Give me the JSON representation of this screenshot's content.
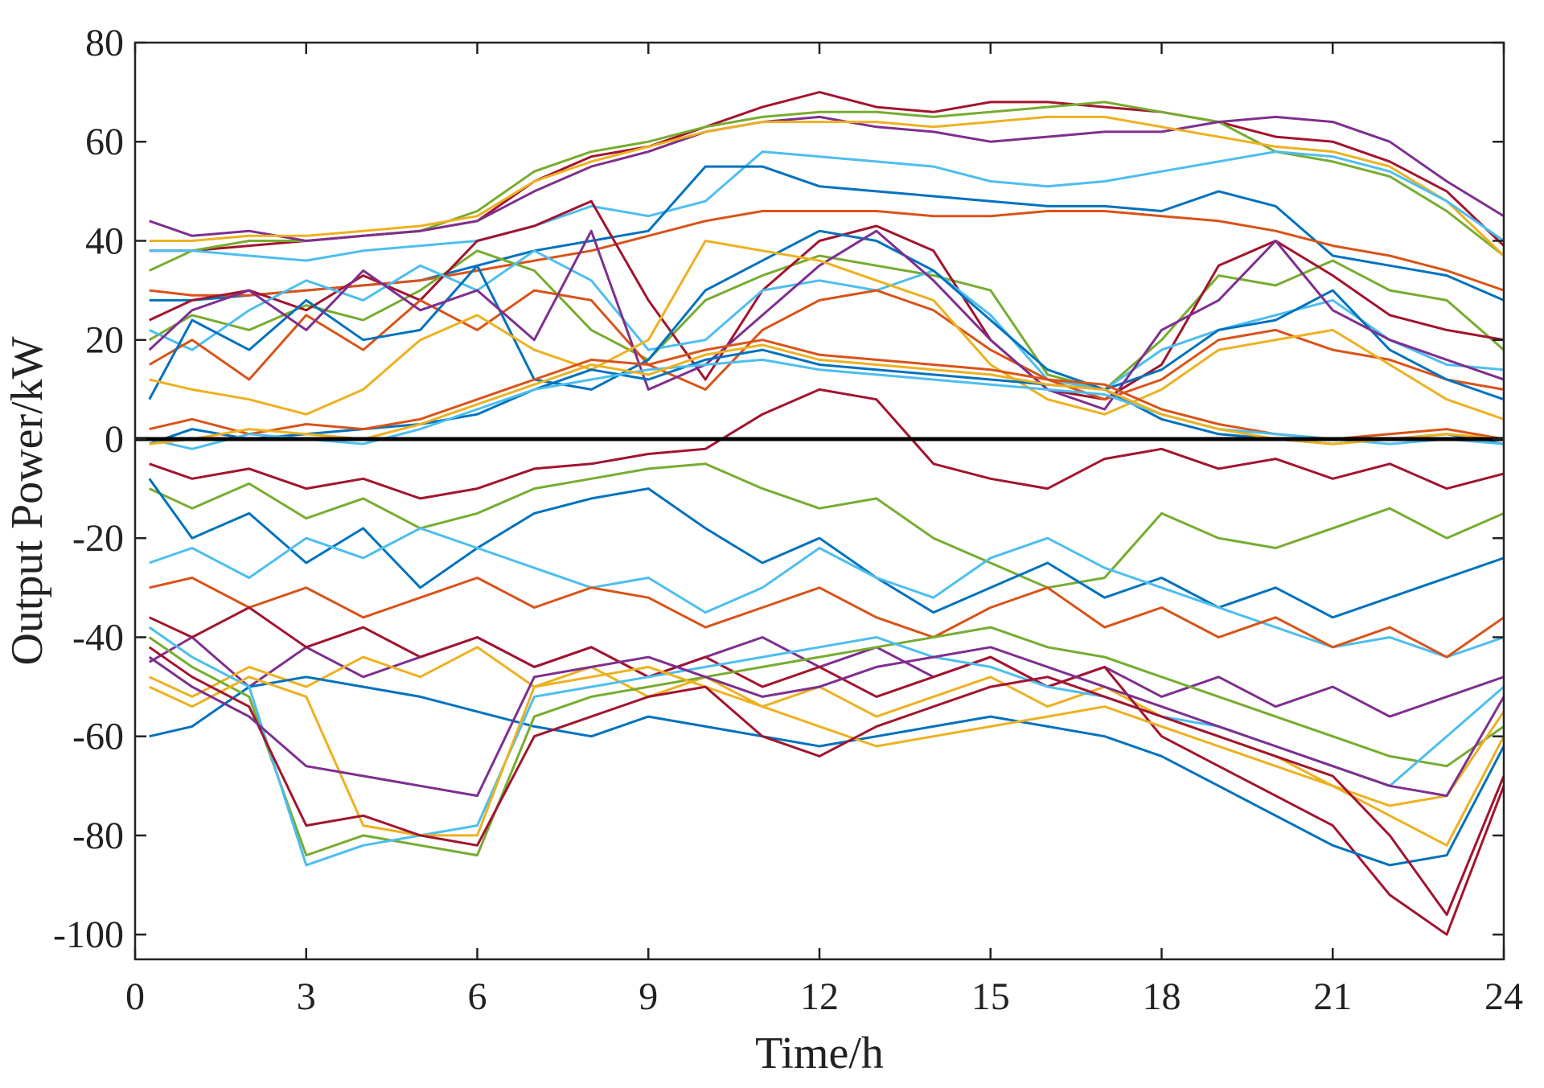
{
  "chart_data": {
    "type": "line",
    "xlabel": "Time/h",
    "ylabel": "Output Power/kW",
    "xlim": [
      0,
      24
    ],
    "ylim": [
      -105,
      80
    ],
    "x_ticks": [
      0,
      3,
      6,
      9,
      12,
      15,
      18,
      21,
      24
    ],
    "y_ticks": [
      -100,
      -80,
      -60,
      -40,
      -20,
      0,
      20,
      40,
      60,
      80
    ],
    "x_tick_labels": [
      "0",
      "3",
      "6",
      "9",
      "12",
      "15",
      "18",
      "21",
      "24"
    ],
    "y_tick_labels": [
      "-100",
      "-80",
      "-60",
      "-40",
      "-20",
      "0",
      "20",
      "40",
      "60",
      "80"
    ],
    "grid": false,
    "box": true,
    "zero_line": {
      "y": 0,
      "color": "#000000"
    },
    "palette": [
      "#0072BD",
      "#D95319",
      "#EDB120",
      "#7E2F8E",
      "#77AC30",
      "#4DBEEE",
      "#A2142F"
    ],
    "x": [
      0.25,
      1,
      2,
      3,
      4,
      5,
      6,
      7,
      8,
      9,
      10,
      11,
      12,
      13,
      14,
      15,
      16,
      17,
      18,
      19,
      20,
      21,
      22,
      23,
      24
    ],
    "series": [
      {
        "color": "#A2142F",
        "values": [
          38,
          38,
          39,
          40,
          41,
          42,
          44,
          52,
          57,
          59,
          63,
          67,
          70,
          67,
          66,
          68,
          68,
          67,
          66,
          64,
          61,
          60,
          56,
          50,
          39
        ]
      },
      {
        "color": "#77AC30",
        "values": [
          34,
          38,
          40,
          40,
          41,
          42,
          46,
          54,
          58,
          60,
          63,
          65,
          66,
          66,
          65,
          66,
          67,
          68,
          66,
          64,
          58,
          56,
          53,
          46,
          37
        ]
      },
      {
        "color": "#7E2F8E",
        "values": [
          44,
          41,
          42,
          40,
          41,
          42,
          44,
          50,
          55,
          58,
          62,
          64,
          65,
          63,
          62,
          60,
          61,
          62,
          62,
          64,
          65,
          64,
          60,
          52,
          45
        ]
      },
      {
        "color": "#EDB120",
        "values": [
          40,
          40,
          41,
          41,
          42,
          43,
          45,
          52,
          56,
          59,
          62,
          64,
          64,
          64,
          63,
          64,
          65,
          65,
          63,
          61,
          59,
          58,
          55,
          48,
          37
        ]
      },
      {
        "color": "#4DBEEE",
        "values": [
          38,
          38,
          37,
          36,
          38,
          39,
          40,
          43,
          47,
          45,
          48,
          58,
          57,
          56,
          55,
          52,
          51,
          52,
          54,
          56,
          58,
          57,
          54,
          48,
          40
        ]
      },
      {
        "color": "#0072BD",
        "values": [
          28,
          28,
          29,
          30,
          31,
          32,
          35,
          38,
          40,
          42,
          55,
          55,
          51,
          50,
          49,
          48,
          47,
          47,
          46,
          50,
          47,
          37,
          35,
          33,
          28
        ]
      },
      {
        "color": "#D95319",
        "values": [
          30,
          29,
          29,
          30,
          31,
          32,
          34,
          36,
          38,
          41,
          44,
          46,
          46,
          46,
          45,
          45,
          46,
          46,
          45,
          44,
          42,
          39,
          37,
          34,
          30
        ]
      },
      {
        "color": "#77AC30",
        "values": [
          20,
          25,
          22,
          27,
          24,
          30,
          38,
          34,
          22,
          16,
          28,
          33,
          37,
          35,
          33,
          30,
          13,
          10,
          20,
          33,
          31,
          36,
          30,
          28,
          18
        ]
      },
      {
        "color": "#A2142F",
        "values": [
          24,
          28,
          30,
          26,
          33,
          28,
          40,
          43,
          48,
          28,
          12,
          30,
          40,
          43,
          38,
          20,
          10,
          8,
          15,
          35,
          40,
          33,
          25,
          22,
          20
        ]
      },
      {
        "color": "#4DBEEE",
        "values": [
          22,
          18,
          26,
          32,
          28,
          35,
          30,
          38,
          32,
          18,
          20,
          30,
          32,
          30,
          34,
          25,
          12,
          10,
          18,
          22,
          25,
          28,
          20,
          15,
          14
        ]
      },
      {
        "color": "#D95319",
        "values": [
          15,
          20,
          12,
          25,
          18,
          28,
          22,
          30,
          28,
          15,
          10,
          22,
          28,
          30,
          26,
          18,
          12,
          8,
          12,
          20,
          22,
          18,
          16,
          12,
          10
        ]
      },
      {
        "color": "#0072BD",
        "values": [
          8,
          24,
          18,
          28,
          20,
          22,
          35,
          12,
          10,
          16,
          30,
          36,
          42,
          40,
          34,
          24,
          14,
          10,
          14,
          22,
          24,
          30,
          18,
          12,
          8
        ]
      },
      {
        "color": "#7E2F8E",
        "values": [
          18,
          26,
          30,
          22,
          34,
          26,
          30,
          20,
          42,
          10,
          15,
          25,
          35,
          42,
          32,
          20,
          10,
          6,
          22,
          28,
          40,
          26,
          20,
          16,
          12
        ]
      },
      {
        "color": "#EDB120",
        "values": [
          12,
          10,
          8,
          5,
          10,
          20,
          25,
          18,
          14,
          20,
          40,
          38,
          36,
          32,
          28,
          15,
          8,
          5,
          10,
          18,
          20,
          22,
          15,
          8,
          4
        ]
      },
      {
        "color": "#0072BD",
        "values": [
          -1,
          2,
          0,
          1,
          2,
          3,
          5,
          10,
          14,
          12,
          16,
          18,
          15,
          14,
          13,
          12,
          11,
          10,
          4,
          1,
          0,
          -1,
          0,
          1,
          -1
        ]
      },
      {
        "color": "#D95319",
        "values": [
          2,
          4,
          1,
          3,
          2,
          4,
          8,
          12,
          16,
          15,
          18,
          20,
          17,
          16,
          15,
          14,
          12,
          11,
          6,
          3,
          1,
          0,
          1,
          2,
          0
        ]
      },
      {
        "color": "#4DBEEE",
        "values": [
          0,
          -2,
          1,
          0,
          -1,
          2,
          6,
          10,
          12,
          14,
          15,
          16,
          14,
          13,
          12,
          11,
          10,
          9,
          5,
          2,
          1,
          0,
          -1,
          0,
          -1
        ]
      },
      {
        "color": "#EDB120",
        "values": [
          -1,
          0,
          2,
          1,
          0,
          3,
          7,
          11,
          15,
          13,
          17,
          19,
          16,
          15,
          14,
          13,
          11,
          10,
          5,
          2,
          0,
          -1,
          0,
          1,
          0
        ]
      },
      {
        "color": "#A2142F",
        "values": [
          -5,
          -8,
          -6,
          -10,
          -8,
          -12,
          -10,
          -6,
          -5,
          -3,
          -2,
          5,
          10,
          8,
          -5,
          -8,
          -10,
          -4,
          -2,
          -6,
          -4,
          -8,
          -5,
          -10,
          -7
        ]
      },
      {
        "color": "#77AC30",
        "values": [
          -10,
          -14,
          -9,
          -16,
          -12,
          -18,
          -15,
          -10,
          -8,
          -6,
          -5,
          -10,
          -14,
          -12,
          -20,
          -25,
          -30,
          -28,
          -15,
          -20,
          -22,
          -18,
          -14,
          -20,
          -15
        ]
      },
      {
        "color": "#0072BD",
        "values": [
          -8,
          -20,
          -15,
          -25,
          -18,
          -30,
          -22,
          -15,
          -12,
          -10,
          -18,
          -25,
          -20,
          -28,
          -35,
          -30,
          -25,
          -32,
          -28,
          -34,
          -30,
          -36,
          -32,
          -28,
          -24
        ]
      },
      {
        "color": "#4DBEEE",
        "values": [
          -25,
          -22,
          -28,
          -20,
          -24,
          -18,
          -22,
          -26,
          -30,
          -28,
          -35,
          -30,
          -22,
          -28,
          -32,
          -24,
          -20,
          -26,
          -30,
          -34,
          -38,
          -42,
          -40,
          -44,
          -40
        ]
      },
      {
        "color": "#D95319",
        "values": [
          -30,
          -28,
          -34,
          -30,
          -36,
          -32,
          -28,
          -34,
          -30,
          -32,
          -38,
          -34,
          -30,
          -36,
          -40,
          -34,
          -30,
          -38,
          -34,
          -40,
          -36,
          -42,
          -38,
          -44,
          -36
        ]
      },
      {
        "color": "#7E2F8E",
        "values": [
          -45,
          -40,
          -50,
          -42,
          -48,
          -44,
          -40,
          -46,
          -42,
          -48,
          -44,
          -40,
          -46,
          -42,
          -48,
          -44,
          -50,
          -46,
          -52,
          -48,
          -54,
          -50,
          -56,
          -52,
          -48
        ]
      },
      {
        "color": "#EDB120",
        "values": [
          -48,
          -52,
          -46,
          -50,
          -44,
          -48,
          -42,
          -50,
          -46,
          -52,
          -48,
          -54,
          -50,
          -56,
          -52,
          -48,
          -54,
          -50,
          -56,
          -60,
          -64,
          -70,
          -76,
          -82,
          -60
        ]
      },
      {
        "color": "#A2142F",
        "values": [
          -36,
          -40,
          -34,
          -42,
          -38,
          -44,
          -40,
          -46,
          -42,
          -48,
          -44,
          -50,
          -46,
          -52,
          -48,
          -44,
          -50,
          -46,
          -60,
          -66,
          -72,
          -78,
          -92,
          -100,
          -70
        ]
      },
      {
        "color": "#0072BD",
        "values": [
          -60,
          -58,
          -50,
          -48,
          -50,
          -52,
          -55,
          -58,
          -60,
          -56,
          -58,
          -60,
          -62,
          -60,
          -58,
          -56,
          -58,
          -60,
          -64,
          -70,
          -76,
          -82,
          -86,
          -84,
          -62
        ]
      },
      {
        "color": "#77AC30",
        "values": [
          -40,
          -46,
          -52,
          -84,
          -80,
          -82,
          -84,
          -56,
          -52,
          -50,
          -48,
          -46,
          -44,
          -42,
          -40,
          -38,
          -42,
          -44,
          -48,
          -52,
          -56,
          -60,
          -64,
          -66,
          -58
        ]
      },
      {
        "color": "#4DBEEE",
        "values": [
          -38,
          -44,
          -50,
          -86,
          -82,
          -80,
          -78,
          -52,
          -50,
          -48,
          -46,
          -44,
          -42,
          -40,
          -44,
          -46,
          -50,
          -52,
          -56,
          -58,
          -62,
          -66,
          -70,
          -60,
          -50
        ]
      },
      {
        "color": "#EDB120",
        "values": [
          -50,
          -54,
          -48,
          -52,
          -78,
          -80,
          -80,
          -50,
          -48,
          -46,
          -50,
          -54,
          -58,
          -62,
          -60,
          -58,
          -56,
          -54,
          -58,
          -62,
          -66,
          -70,
          -74,
          -72,
          -55
        ]
      },
      {
        "color": "#A2142F",
        "values": [
          -42,
          -48,
          -54,
          -78,
          -76,
          -80,
          -82,
          -60,
          -56,
          -52,
          -50,
          -60,
          -64,
          -58,
          -54,
          -50,
          -48,
          -52,
          -56,
          -60,
          -64,
          -68,
          -80,
          -96,
          -68
        ]
      },
      {
        "color": "#7E2F8E",
        "values": [
          -44,
          -50,
          -56,
          -66,
          -68,
          -70,
          -72,
          -48,
          -46,
          -44,
          -48,
          -52,
          -50,
          -46,
          -44,
          -42,
          -46,
          -50,
          -54,
          -58,
          -62,
          -66,
          -70,
          -72,
          -52
        ]
      }
    ]
  }
}
